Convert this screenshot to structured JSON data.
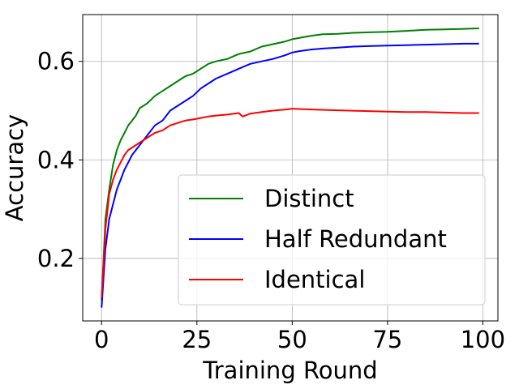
{
  "chart_data": {
    "type": "line",
    "title": "",
    "xlabel": "Training Round",
    "ylabel": "Accuracy",
    "xlim": [
      -4.95,
      103.95
    ],
    "ylim": [
      0.073,
      0.695
    ],
    "xticks": [
      0,
      25,
      50,
      75,
      100
    ],
    "yticks": [
      0.2,
      0.4,
      0.6
    ],
    "xtick_labels": [
      "0",
      "25",
      "50",
      "75",
      "100"
    ],
    "ytick_labels": [
      "0.2",
      "0.4",
      "0.6"
    ],
    "grid": true,
    "legend_position": "lower-right",
    "series": [
      {
        "name": "Distinct",
        "color": "#008000",
        "x": [
          0,
          1,
          2,
          3,
          4,
          5,
          6,
          7,
          8,
          9,
          10,
          12,
          14,
          16,
          18,
          20,
          22,
          24,
          26,
          28,
          30,
          33,
          36,
          39,
          42,
          45,
          48,
          50,
          52,
          55,
          58,
          62,
          66,
          70,
          75,
          80,
          85,
          90,
          95,
          99
        ],
        "y": [
          0.115,
          0.28,
          0.34,
          0.39,
          0.42,
          0.44,
          0.455,
          0.47,
          0.48,
          0.49,
          0.505,
          0.515,
          0.53,
          0.54,
          0.55,
          0.56,
          0.57,
          0.575,
          0.585,
          0.595,
          0.6,
          0.605,
          0.615,
          0.62,
          0.63,
          0.635,
          0.64,
          0.645,
          0.648,
          0.652,
          0.655,
          0.656,
          0.658,
          0.659,
          0.66,
          0.662,
          0.664,
          0.665,
          0.666,
          0.667
        ]
      },
      {
        "name": "Half Redundant",
        "color": "#0000ff",
        "x": [
          0,
          1,
          2,
          3,
          4,
          5,
          6,
          7,
          8,
          9,
          10,
          12,
          14,
          16,
          18,
          20,
          22,
          24,
          26,
          28,
          30,
          33,
          36,
          39,
          42,
          45,
          48,
          50,
          52,
          55,
          58,
          62,
          66,
          70,
          75,
          80,
          85,
          90,
          95,
          99
        ],
        "y": [
          0.1,
          0.22,
          0.28,
          0.31,
          0.34,
          0.36,
          0.38,
          0.395,
          0.41,
          0.42,
          0.43,
          0.45,
          0.47,
          0.48,
          0.5,
          0.51,
          0.52,
          0.53,
          0.545,
          0.555,
          0.565,
          0.575,
          0.585,
          0.595,
          0.6,
          0.605,
          0.612,
          0.618,
          0.621,
          0.624,
          0.626,
          0.628,
          0.63,
          0.631,
          0.632,
          0.633,
          0.634,
          0.635,
          0.636,
          0.636
        ]
      },
      {
        "name": "Identical",
        "color": "#ff0000",
        "x": [
          0,
          1,
          2,
          3,
          4,
          5,
          6,
          7,
          8,
          9,
          10,
          12,
          14,
          16,
          18,
          20,
          22,
          24,
          26,
          28,
          30,
          33,
          36,
          37,
          39,
          42,
          45,
          48,
          50,
          53,
          56,
          60,
          65,
          70,
          75,
          80,
          85,
          90,
          95,
          99
        ],
        "y": [
          0.12,
          0.26,
          0.33,
          0.36,
          0.38,
          0.395,
          0.41,
          0.42,
          0.425,
          0.43,
          0.435,
          0.445,
          0.455,
          0.46,
          0.47,
          0.475,
          0.48,
          0.482,
          0.485,
          0.488,
          0.49,
          0.492,
          0.495,
          0.488,
          0.494,
          0.497,
          0.5,
          0.502,
          0.504,
          0.503,
          0.502,
          0.501,
          0.5,
          0.499,
          0.498,
          0.497,
          0.497,
          0.496,
          0.495,
          0.495
        ]
      }
    ]
  }
}
